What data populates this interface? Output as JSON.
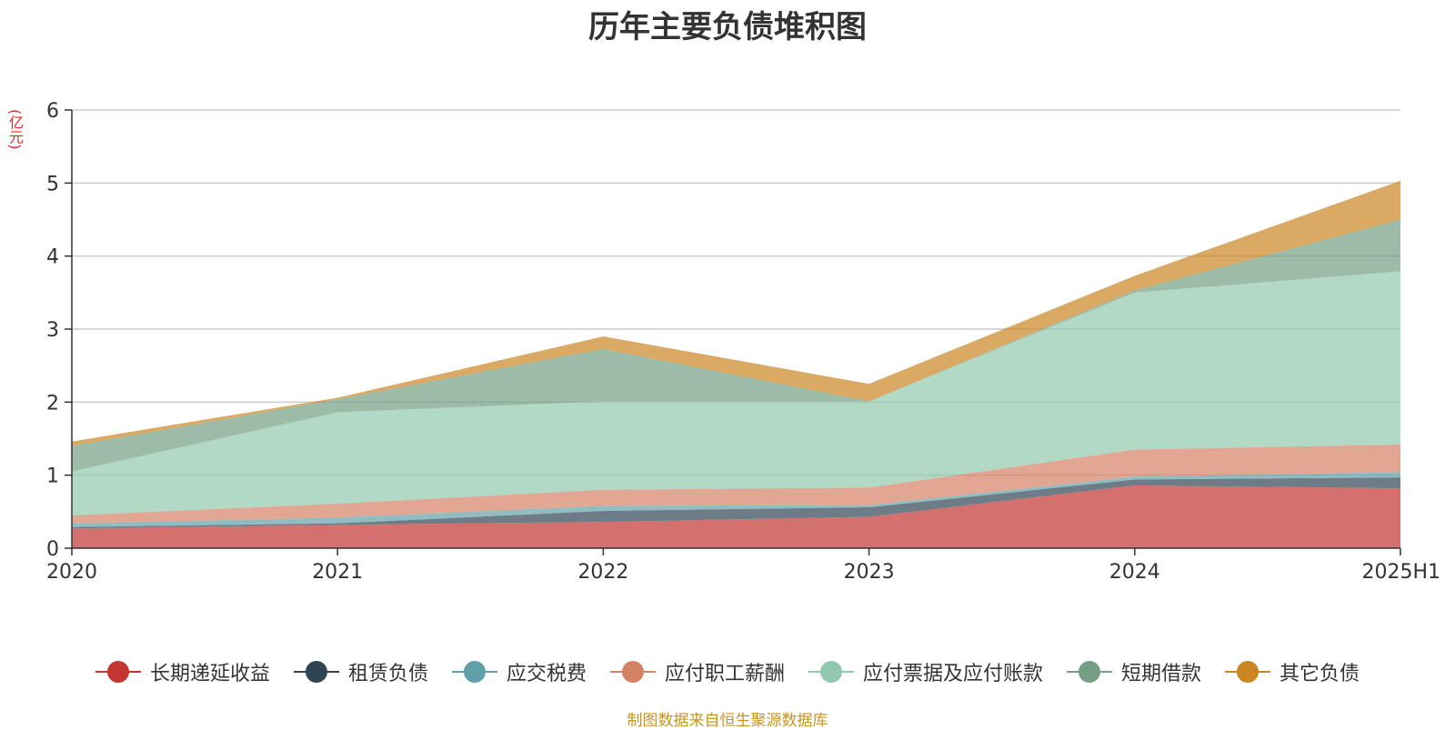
{
  "chart_data": {
    "type": "area",
    "stacked": true,
    "title": "历年主要负债堆积图",
    "unit_label": "(亿元)",
    "categories": [
      "2020",
      "2021",
      "2022",
      "2023",
      "2024",
      "2025H1"
    ],
    "ylim": [
      0,
      6
    ],
    "yticks": [
      "0",
      "1",
      "2",
      "3",
      "4",
      "5",
      "6"
    ],
    "grid": true,
    "legend_position": "bottom",
    "series": [
      {
        "name": "长期递延收益",
        "color": "#c23531",
        "values": [
          0.27,
          0.32,
          0.36,
          0.43,
          0.86,
          0.82
        ]
      },
      {
        "name": "租赁负债",
        "color": "#2f4554",
        "values": [
          0.02,
          0.02,
          0.15,
          0.13,
          0.08,
          0.15
        ]
      },
      {
        "name": "应交税费",
        "color": "#61a0a8",
        "values": [
          0.05,
          0.08,
          0.07,
          0.03,
          0.04,
          0.07
        ]
      },
      {
        "name": "应付职工薪酬",
        "color": "#d48265",
        "values": [
          0.11,
          0.19,
          0.22,
          0.24,
          0.37,
          0.38
        ]
      },
      {
        "name": "应付票据及应付账款",
        "color": "#91c7ae",
        "values": [
          0.6,
          1.25,
          1.21,
          1.18,
          2.15,
          2.37
        ]
      },
      {
        "name": "短期借款",
        "color": "#749f83",
        "values": [
          0.35,
          0.18,
          0.72,
          0.0,
          0.03,
          0.71
        ]
      },
      {
        "name": "其它负债",
        "color": "#ca8622",
        "values": [
          0.06,
          0.02,
          0.17,
          0.24,
          0.2,
          0.53
        ]
      }
    ]
  },
  "footer": {
    "source": "制图数据来自恒生聚源数据库"
  }
}
